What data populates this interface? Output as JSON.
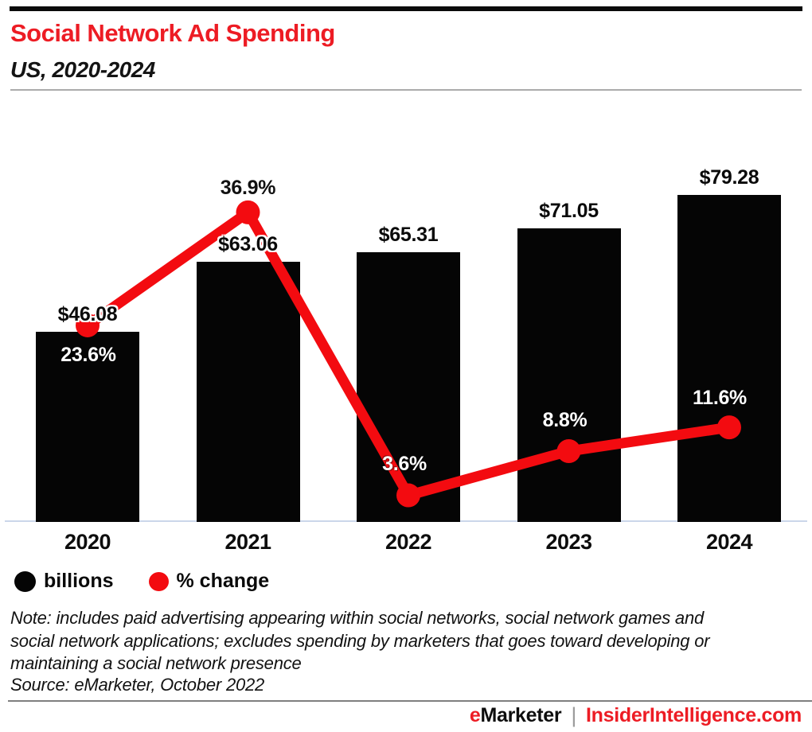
{
  "header": {
    "title": "Social Network Ad Spending",
    "subtitle": "US, 2020-2024"
  },
  "colors": {
    "brand_red": "#ED1C24",
    "line_red": "#F30B10",
    "bar_black": "#050505",
    "baseline_blue": "#CBD6EA",
    "header_rule_gray": "#ABABAB",
    "footer_rule_gray": "#7F7F7F",
    "top_bar_black": "#0B0B0B"
  },
  "chart_data": {
    "type": "bar",
    "subtype": "bar-with-line-combo",
    "title": "Social Network Ad Spending",
    "subtitle": "US, 2020-2024",
    "categories": [
      "2020",
      "2021",
      "2022",
      "2023",
      "2024"
    ],
    "series": [
      {
        "name": "billions",
        "type": "bar",
        "unit": "US$ billions",
        "values": [
          46.08,
          63.06,
          65.31,
          71.05,
          79.28
        ],
        "labels": [
          "$46.08",
          "$63.06",
          "$65.31",
          "$71.05",
          "$79.28"
        ],
        "color": "#050505"
      },
      {
        "name": "% change",
        "type": "line",
        "unit": "percent",
        "values": [
          23.6,
          36.9,
          3.6,
          8.8,
          11.6
        ],
        "labels": [
          "23.6%",
          "36.9%",
          "3.6%",
          "8.8%",
          "11.6%"
        ],
        "color": "#F30B10"
      }
    ],
    "xlabel": "",
    "ylabel": "",
    "grid": false,
    "value_labels_shown": true,
    "legend_position": "bottom-left"
  },
  "legend": {
    "items": [
      {
        "label": "billions",
        "color": "#050505"
      },
      {
        "label": "% change",
        "color": "#F30B10"
      }
    ]
  },
  "note": {
    "lines": [
      "Note: includes paid advertising appearing within social networks, social network games and",
      "social network applications; excludes spending by marketers that goes toward developing or",
      "maintaining a social network presence"
    ],
    "source": "Source: eMarketer, October 2022"
  },
  "footer": {
    "emarketer_e": "e",
    "emarketer_rest": "Marketer",
    "separator": "|",
    "site": "InsiderIntelligence.com"
  }
}
